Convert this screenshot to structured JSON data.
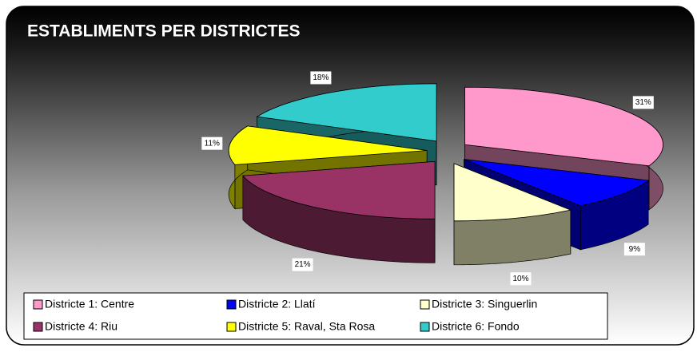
{
  "chart_data": {
    "type": "pie",
    "title": "ESTABLIMENTS PER DISTRICTES",
    "categories": [
      "Districte 1: Centre",
      "Districte 2: Llatí",
      "Districte 3: Singuerlin",
      "Districte 4: Riu",
      "Districte 5: Raval, Sta Rosa",
      "Districte 6: Fondo"
    ],
    "values": [
      31,
      9,
      10,
      21,
      11,
      18
    ],
    "value_labels": [
      "31%",
      "9%",
      "10%",
      "21%",
      "11%",
      "18%"
    ],
    "colors": [
      "#ff99cc",
      "#0000ff",
      "#ffffcc",
      "#993366",
      "#ffff00",
      "#33cccc"
    ],
    "legend": "bottom"
  }
}
